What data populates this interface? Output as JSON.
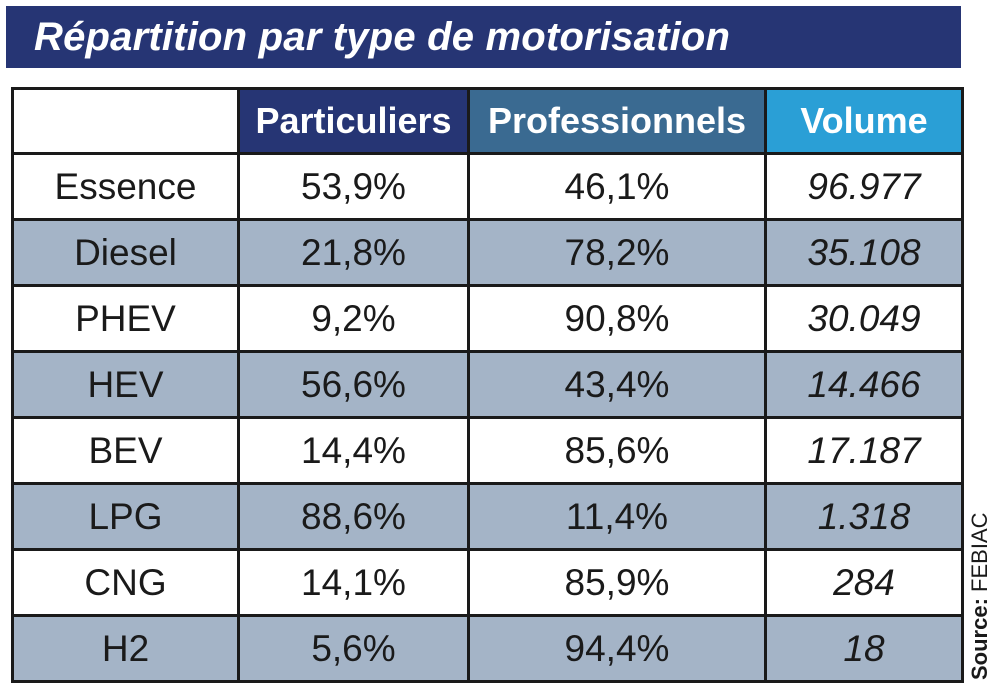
{
  "title": "Répartition par type de motorisation",
  "source": {
    "label": "Source:",
    "value": "FEBIAC"
  },
  "colors": {
    "title_bg": "#263574",
    "header_particuliers": "#263574",
    "header_professionnels": "#3a6a91",
    "header_volume": "#2a9fd6",
    "alt_row": "#a4b4c7"
  },
  "chart_data": {
    "type": "table",
    "columns": [
      "",
      "Particuliers",
      "Professionnels",
      "Volume"
    ],
    "rows": [
      {
        "label": "Essence",
        "particuliers": "53,9%",
        "professionnels": "46,1%",
        "volume": "96.977"
      },
      {
        "label": "Diesel",
        "particuliers": "21,8%",
        "professionnels": "78,2%",
        "volume": "35.108"
      },
      {
        "label": "PHEV",
        "particuliers": "9,2%",
        "professionnels": "90,8%",
        "volume": "30.049"
      },
      {
        "label": "HEV",
        "particuliers": "56,6%",
        "professionnels": "43,4%",
        "volume": "14.466"
      },
      {
        "label": "BEV",
        "particuliers": "14,4%",
        "professionnels": "85,6%",
        "volume": "17.187"
      },
      {
        "label": "LPG",
        "particuliers": "88,6%",
        "professionnels": "11,4%",
        "volume": "1.318"
      },
      {
        "label": "CNG",
        "particuliers": "14,1%",
        "professionnels": "85,9%",
        "volume": "284"
      },
      {
        "label": "H2",
        "particuliers": "5,6%",
        "professionnels": "94,4%",
        "volume": "18"
      }
    ]
  }
}
